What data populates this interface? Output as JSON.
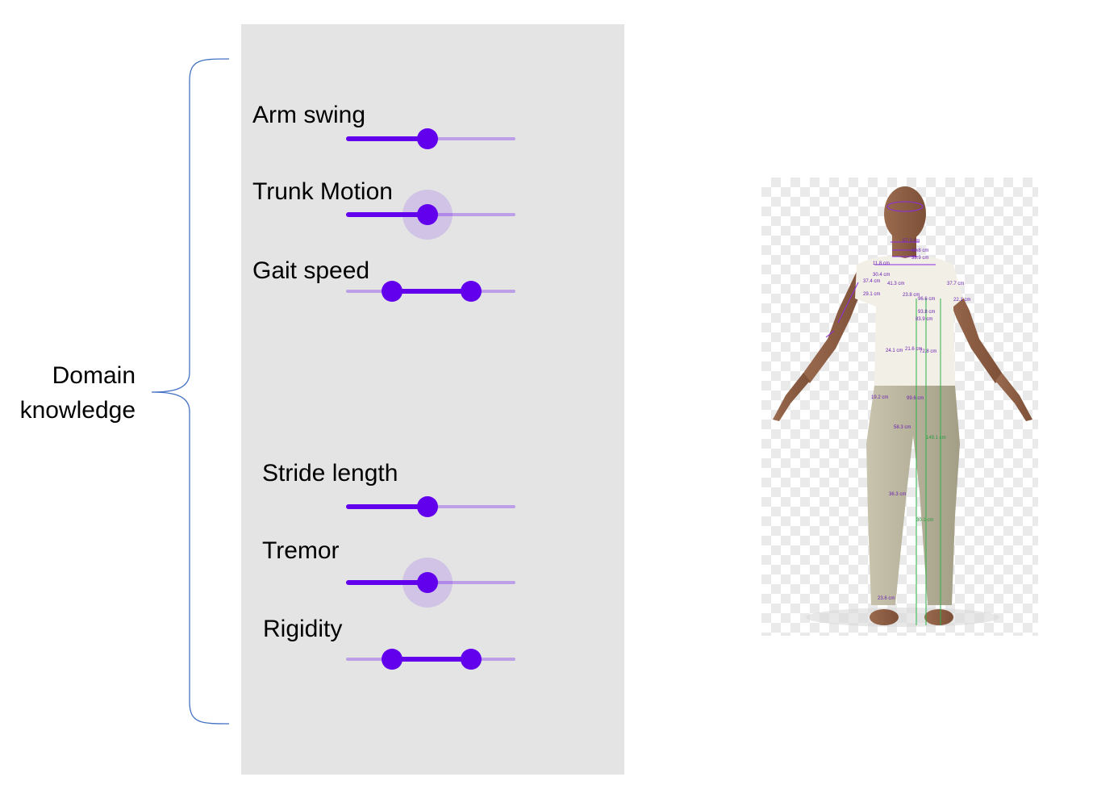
{
  "annotation": {
    "label_line1": "Domain",
    "label_line2": "knowledge"
  },
  "controls": [
    {
      "label": "Arm swing",
      "type": "single",
      "value": 0.48
    },
    {
      "label": "Trunk Motion",
      "type": "single",
      "value": 0.48,
      "focused": true
    },
    {
      "label": "Gait speed",
      "type": "range",
      "low": 0.27,
      "high": 0.74
    },
    {
      "label": "Stride length",
      "type": "single",
      "value": 0.48
    },
    {
      "label": "Tremor",
      "type": "single",
      "value": 0.48,
      "focused": true
    },
    {
      "label": "Rigidity",
      "type": "range",
      "low": 0.27,
      "high": 0.74
    }
  ],
  "colors": {
    "accent": "#6200ee",
    "panel": "#e4e4e4",
    "brace": "#4472c4",
    "measure_purple": "#8a2be2",
    "measure_green": "#2db34a"
  },
  "avatar": {
    "measurements": [
      "57.2 cm",
      "36.4 cm",
      "32.8 cm",
      "38.9 cm",
      "11.8 cm",
      "30.4 cm",
      "37.4 cm",
      "41.3 cm",
      "23.8 cm",
      "96.6 cm",
      "93.8 cm",
      "83.9 cm",
      "37.7 cm",
      "37.6 cm",
      "22.1 cm",
      "29.1 cm",
      "24.1 cm",
      "21.6 cm",
      "72.8 cm",
      "19.2 cm",
      "99.6 cm",
      "58.3 cm",
      "149.1 cm",
      "36.3 cm",
      "30.1 cm",
      "23.6 cm"
    ]
  }
}
